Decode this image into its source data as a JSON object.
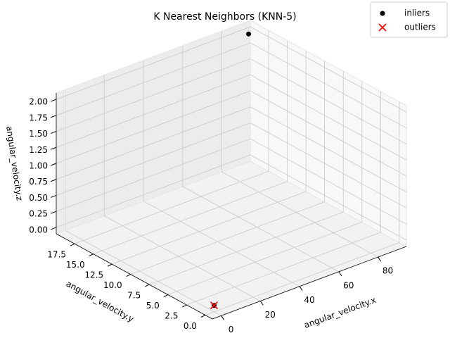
{
  "chart_data": {
    "type": "scatter3d",
    "title": "K Nearest Neighbors (KNN-5)",
    "xlabel": "angular_velocity.x",
    "ylabel": "angular_velocity.y",
    "zlabel": "angular_velocity.z",
    "xlim": [
      -4.5,
      94.5
    ],
    "ylim": [
      -0.95,
      19.95
    ],
    "zlim": [
      -0.1,
      2.1
    ],
    "xticks": [
      0,
      20,
      40,
      60,
      80
    ],
    "yticks": [
      {
        "value": 0,
        "label": "0.0"
      },
      2.5,
      {
        "value": 5,
        "label": "5.0"
      },
      7.5,
      {
        "value": 10,
        "label": "10.0"
      },
      12.5,
      {
        "value": 15,
        "label": "15.0"
      },
      17.5
    ],
    "zticks": [
      {
        "value": 0,
        "label": "0.00"
      },
      0.25,
      {
        "value": 0.5,
        "label": "0.50"
      },
      0.75,
      {
        "value": 1,
        "label": "1.00"
      },
      1.25,
      {
        "value": 1.5,
        "label": "1.50"
      },
      1.75,
      {
        "value": 2,
        "label": "2.00"
      }
    ],
    "grid": true,
    "legend": "upper right",
    "series": [
      {
        "name": "inliers",
        "color": "#000000",
        "marker": "o",
        "x": [
          0,
          90
        ],
        "y": [
          0,
          19
        ],
        "z": [
          0,
          2
        ]
      },
      {
        "name": "outliers",
        "color": "#ff0000",
        "marker": "x",
        "x": [
          0
        ],
        "y": [
          0
        ],
        "z": [
          0
        ]
      }
    ]
  }
}
